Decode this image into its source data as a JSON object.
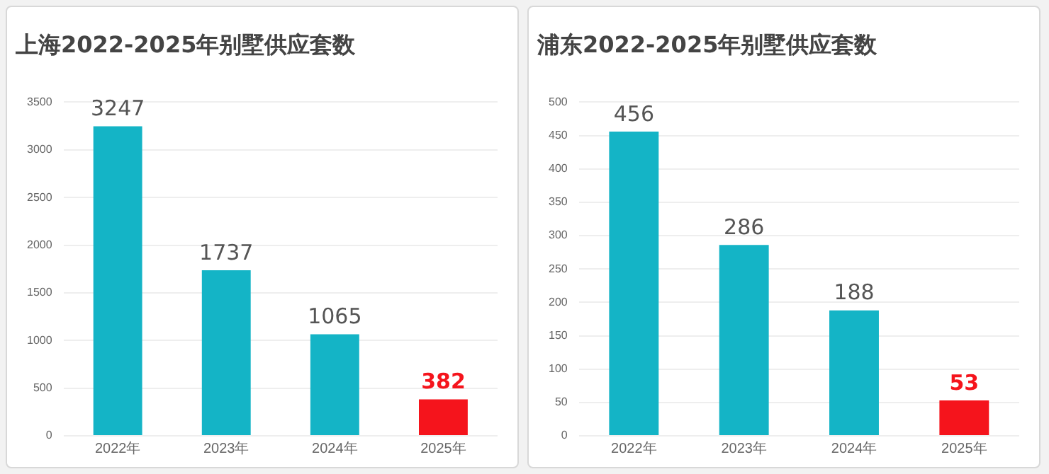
{
  "chart_data": [
    {
      "type": "bar",
      "title": "上海2022-2025年别墅供应套数",
      "categories": [
        "2022年",
        "2023年",
        "2024年",
        "2025年"
      ],
      "values": [
        3247,
        1737,
        1065,
        382
      ],
      "colors": [
        "#14b4c6",
        "#14b4c6",
        "#14b4c6",
        "#f5141c"
      ],
      "ylim": [
        0,
        3500
      ],
      "yticks": [
        0,
        500,
        1000,
        1500,
        2000,
        2500,
        3000,
        3500
      ],
      "grid": "y",
      "data_labels": true,
      "legend": false
    },
    {
      "type": "bar",
      "title": "浦东2022-2025年别墅供应套数",
      "categories": [
        "2022年",
        "2023年",
        "2024年",
        "2025年"
      ],
      "values": [
        456,
        286,
        188,
        53
      ],
      "colors": [
        "#14b4c6",
        "#14b4c6",
        "#14b4c6",
        "#f5141c"
      ],
      "ylim": [
        0,
        500
      ],
      "yticks": [
        0,
        50,
        100,
        150,
        200,
        250,
        300,
        350,
        400,
        450,
        500
      ],
      "grid": "y",
      "data_labels": true,
      "legend": false
    }
  ]
}
